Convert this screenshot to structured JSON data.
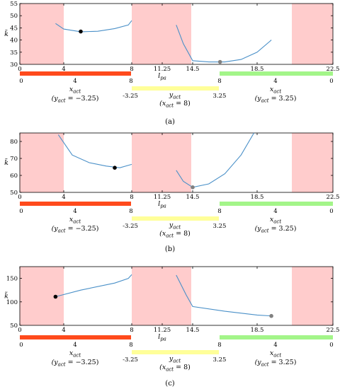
{
  "x_ticks": [
    "0",
    "4",
    "8",
    "11.25",
    "14.5",
    "18.5",
    "22.5"
  ],
  "x_label": "l_pa",
  "y_label": "k̃",
  "bar_colors": {
    "red": "#ff4a1c",
    "yellow": "#ffff99",
    "green": "#a3f589",
    "shade": "#ffcccc",
    "curve": "#4a90c8"
  },
  "bar_ticks": {
    "red": [
      "0",
      "4",
      "8"
    ],
    "yellow": [
      "-3.25",
      "3.25"
    ],
    "green": [
      "8",
      "4",
      "0"
    ]
  },
  "bar_labels": {
    "red": [
      "x_act",
      "(y_act = −3.25)"
    ],
    "yellow": [
      "y_act",
      "(x_act = 8)"
    ],
    "green": [
      "x_act",
      "(y_act = 3.25)"
    ]
  },
  "chart_data": [
    {
      "type": "line",
      "caption": "(a)",
      "ylim": [
        30,
        55
      ],
      "y_ticks": [
        "30",
        "35",
        "40",
        "45",
        "50",
        "55"
      ],
      "shaded_regions": [
        [
          0,
          3.25
        ],
        [
          8,
          12.75
        ],
        [
          19.25,
          22.5
        ]
      ],
      "series": [
        {
          "segment": 1,
          "x": [
            3.25,
            4,
            5,
            6,
            7,
            7.8,
            8
          ],
          "y": [
            46.8,
            44.5,
            43.4,
            43.6,
            44.7,
            46.2,
            48.0
          ]
        },
        {
          "segment": 2,
          "x": [
            12.75,
            13.5,
            14.5,
            15.5,
            16.5,
            17.5,
            18.5,
            19.25
          ],
          "y": [
            46.2,
            38.5,
            31.5,
            31.0,
            31.0,
            32.0,
            35.0,
            40.0
          ]
        }
      ],
      "markers": [
        {
          "x": 5.0,
          "y": 43.5,
          "color": "#000000"
        },
        {
          "x": 16.2,
          "y": 31.0,
          "color": "#808080"
        }
      ]
    },
    {
      "type": "line",
      "caption": "(b)",
      "ylim": [
        50,
        85
      ],
      "y_ticks": [
        "50",
        "60",
        "70",
        "80"
      ],
      "shaded_regions": [
        [
          0,
          3.25
        ],
        [
          8,
          12.75
        ],
        [
          19.25,
          22.5
        ]
      ],
      "series": [
        {
          "segment": 1,
          "x": [
            3.5,
            4.5,
            5.5,
            6.5,
            7.3,
            8
          ],
          "y": [
            84.0,
            72.0,
            67.5,
            65.5,
            64.5,
            66.5
          ]
        },
        {
          "segment": 2,
          "x": [
            12.75,
            13.5,
            14.5,
            15.5,
            16.5,
            17.5,
            18.3
          ],
          "y": [
            63.0,
            56.5,
            53.0,
            55.0,
            61.0,
            72.0,
            85.0
          ]
        }
      ],
      "markers": [
        {
          "x": 7.0,
          "y": 64.5,
          "color": "#000000"
        },
        {
          "x": 14.5,
          "y": 53.0,
          "color": "#808080"
        }
      ]
    },
    {
      "type": "line",
      "caption": "(c)",
      "ylim": [
        50,
        175
      ],
      "y_ticks": [
        "50",
        "100",
        "150"
      ],
      "shaded_regions": [
        [
          0,
          3.25
        ],
        [
          8,
          12.75
        ],
        [
          19.25,
          22.5
        ]
      ],
      "series": [
        {
          "segment": 1,
          "x": [
            3.25,
            5,
            7,
            7.8,
            8
          ],
          "y": [
            111,
            125,
            140,
            150,
            158
          ]
        },
        {
          "segment": 2,
          "x": [
            12.75,
            13.8,
            14.5,
            16.5,
            18.5,
            19.25
          ],
          "y": [
            157,
            115,
            90,
            80,
            72,
            70
          ]
        }
      ],
      "markers": [
        {
          "x": 3.25,
          "y": 111,
          "color": "#000000"
        },
        {
          "x": 19.25,
          "y": 70,
          "color": "#808080"
        }
      ]
    }
  ]
}
